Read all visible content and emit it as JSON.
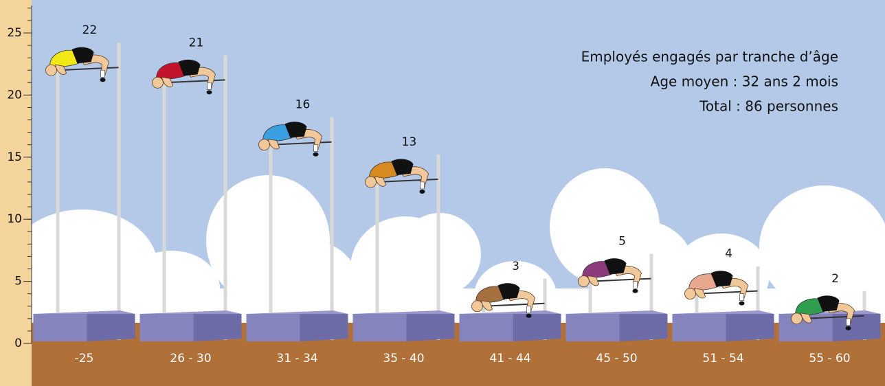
{
  "chart_data": {
    "type": "high-jump",
    "title": "Employés engagés par tranche d’âge",
    "subtitle": "Age moyen : 32 ans 2 mois",
    "annotation": "Total : 86 personnes",
    "categories": [
      "-25",
      "26 - 30",
      "31 - 34",
      "35 - 40",
      "41 - 44",
      "45 - 50",
      "51 - 54",
      "55 - 60"
    ],
    "values": [
      22,
      21,
      16,
      13,
      3,
      5,
      4,
      2
    ],
    "colors": [
      "#f2e816",
      "#c3122c",
      "#3a9fe0",
      "#d88a22",
      "#a6703e",
      "#8c3a7c",
      "#e8a88e",
      "#2f9e4e"
    ],
    "ylim": [
      0,
      25
    ],
    "yticks": [
      0,
      5,
      10,
      15,
      20,
      25
    ]
  }
}
